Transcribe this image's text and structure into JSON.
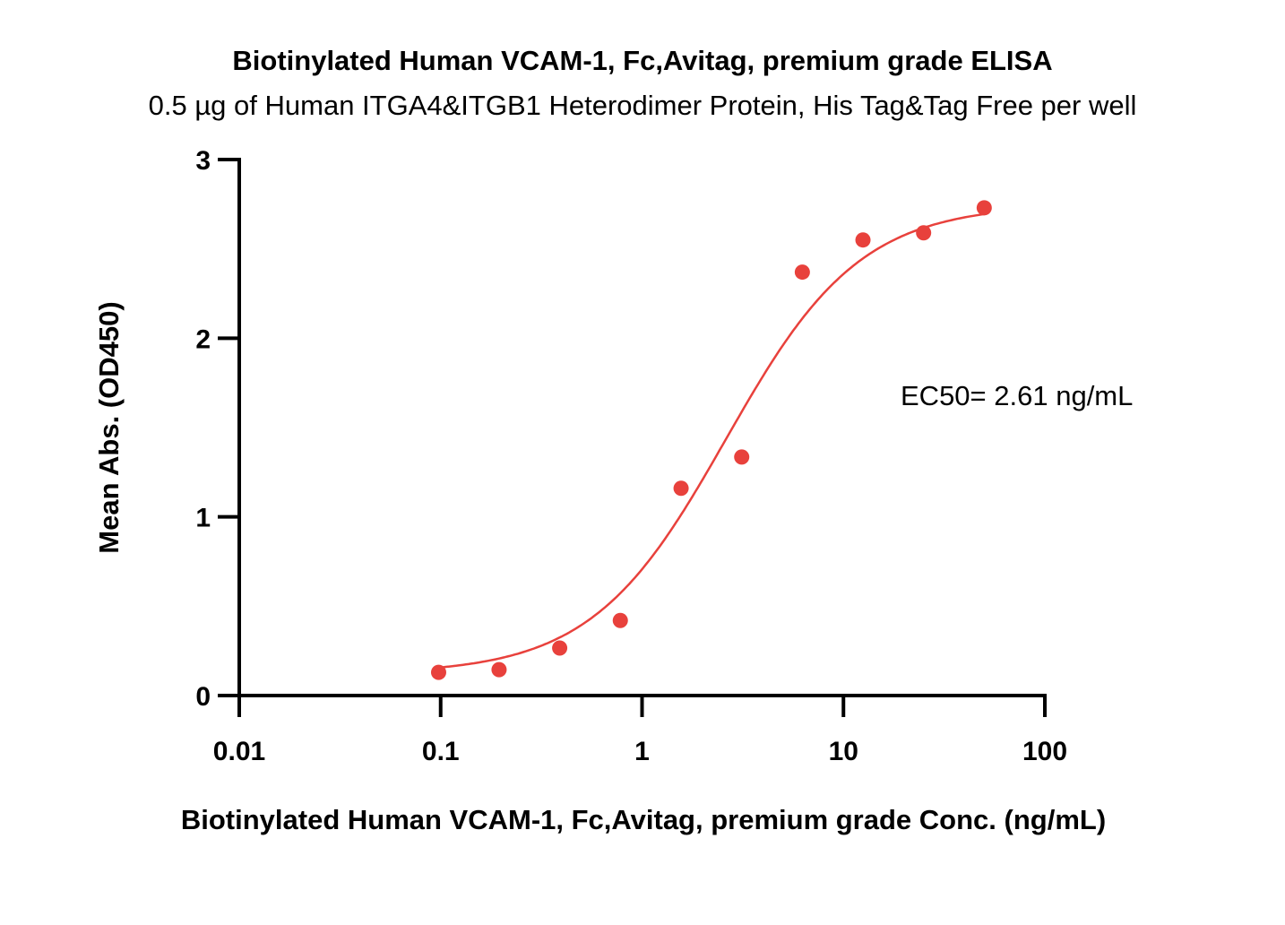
{
  "chart_data": {
    "type": "scatter",
    "title": "Biotinylated Human VCAM-1, Fc,Avitag, premium grade ELISA",
    "subtitle": "0.5 µg of Human ITGA4&ITGB1 Heterodimer Protein, His Tag&Tag Free per well",
    "xlabel": "Biotinylated Human VCAM-1, Fc,Avitag, premium grade Conc. (ng/mL)",
    "ylabel": "Mean Abs. (OD450)",
    "xscale": "log",
    "xlim": [
      0.01,
      100
    ],
    "ylim": [
      0,
      3
    ],
    "xticks": [
      "0.01",
      "0.1",
      "1",
      "10",
      "100"
    ],
    "xtick_values": [
      0.01,
      0.1,
      1,
      10,
      100
    ],
    "yticks": [
      "0",
      "1",
      "2",
      "3"
    ],
    "ytick_values": [
      0,
      1,
      2,
      3
    ],
    "grid": false,
    "color": "#e8413c",
    "series": [
      {
        "name": "data",
        "x": [
          0.0977,
          0.195,
          0.39,
          0.78,
          1.5625,
          3.125,
          6.25,
          12.5,
          25,
          50
        ],
        "y": [
          0.13,
          0.145,
          0.266,
          0.42,
          1.16,
          1.335,
          2.37,
          2.55,
          2.59,
          2.73
        ]
      }
    ],
    "fit": {
      "model": "4PL",
      "bottom": 0.12,
      "top": 2.75,
      "ec50": 2.61,
      "hill": 1.3,
      "xrange": [
        0.0977,
        50
      ]
    },
    "annotation": "EC50= 2.61 ng/mL"
  }
}
